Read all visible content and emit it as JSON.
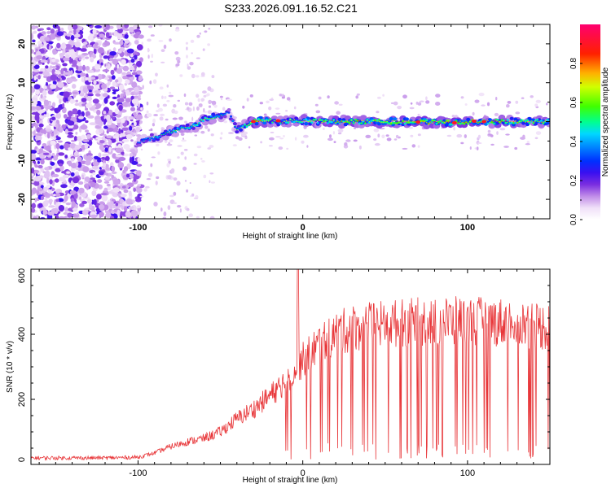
{
  "figure_title": "S233.2026.091.16.52.C21",
  "colors": {
    "snr_line": "#e8373a",
    "axis": "#000000",
    "colormap": [
      "#ffffff",
      "#ead9f5",
      "#c7a8ec",
      "#9b5fe3",
      "#6a1ed8",
      "#2a1aff",
      "#0080ff",
      "#00d8ff",
      "#00ff80",
      "#7fff00",
      "#ffff00",
      "#ff8000",
      "#ff0000",
      "#ff0090"
    ]
  },
  "chart_data": [
    {
      "type": "heatmap",
      "xlabel": "Height of straight line (km)",
      "ylabel": "Frequency (Hz)",
      "xlim": [
        -165,
        150
      ],
      "ylim": [
        -25,
        25
      ],
      "xticks": [
        -100,
        0,
        100
      ],
      "xtick_labels": [
        "-100",
        "0",
        "100"
      ],
      "yticks": [
        -20,
        -10,
        0,
        10,
        20
      ],
      "ytick_labels": [
        "-20",
        "-10",
        "0",
        "10",
        "20"
      ],
      "colorbar": {
        "label": "Normalized spectral amplitude",
        "range": [
          0,
          1
        ],
        "ticks": [
          0.0,
          0.2,
          0.4,
          0.6,
          0.8
        ],
        "tick_labels": [
          "0.0",
          "0.2",
          "0.4",
          "0.6",
          "0.8"
        ]
      },
      "noise_region_end_km": -98,
      "ridge": {
        "x": [
          -100,
          -95,
          -90,
          -85,
          -80,
          -75,
          -70,
          -65,
          -60,
          -55,
          -50,
          -45,
          -40,
          -35,
          -30,
          -25,
          -20,
          -15,
          -10,
          -5,
          0,
          10,
          20,
          30,
          40,
          50,
          60,
          70,
          80,
          90,
          100,
          110,
          120,
          130,
          140,
          150
        ],
        "freq": [
          -5.5,
          -4.5,
          -4,
          -3.5,
          -2.5,
          -2,
          -1.5,
          -1,
          0.5,
          1,
          1.5,
          2.5,
          -2,
          -1,
          0,
          0.2,
          0.3,
          -0.3,
          0.2,
          0.3,
          0.2,
          0.1,
          0,
          0,
          0,
          0,
          -0.1,
          -0.1,
          -0.2,
          -0.2,
          -0.1,
          0,
          0,
          0,
          0,
          0
        ],
        "amplitude": [
          0.4,
          0.45,
          0.5,
          0.5,
          0.55,
          0.55,
          0.55,
          0.6,
          0.6,
          0.6,
          0.5,
          0.4,
          0.5,
          0.6,
          0.85,
          0.8,
          0.7,
          0.55,
          0.6,
          0.65,
          0.7,
          0.7,
          0.75,
          0.75,
          0.75,
          0.75,
          0.75,
          0.8,
          0.8,
          0.8,
          0.8,
          0.75,
          0.75,
          0.7,
          0.7,
          0.7
        ]
      }
    },
    {
      "type": "line",
      "xlabel": "Height of straight line (km)",
      "ylabel": "SNR (10 * v/v)",
      "xlim": [
        -165,
        150
      ],
      "ylim": [
        0,
        600
      ],
      "xticks": [
        -100,
        0,
        100
      ],
      "xtick_labels": [
        "-100",
        "0",
        "100"
      ],
      "yticks": [
        0,
        200,
        400,
        600
      ],
      "ytick_labels": [
        "0",
        "200",
        "400",
        "600"
      ],
      "series": [
        {
          "name": "SNR",
          "spike": {
            "x": -3,
            "y": 600
          },
          "envelope": {
            "x": [
              -165,
              -140,
              -120,
              -100,
              -90,
              -80,
              -70,
              -60,
              -50,
              -40,
              -30,
              -20,
              -10,
              0,
              10,
              20,
              30,
              40,
              60,
              80,
              100,
              120,
              140,
              150
            ],
            "y": [
              20,
              20,
              20,
              22,
              35,
              55,
              70,
              80,
              100,
              140,
              170,
              210,
              260,
              320,
              370,
              400,
              420,
              425,
              435,
              440,
              440,
              438,
              430,
              420
            ]
          },
          "dropout_start_km": -15
        }
      ]
    }
  ]
}
